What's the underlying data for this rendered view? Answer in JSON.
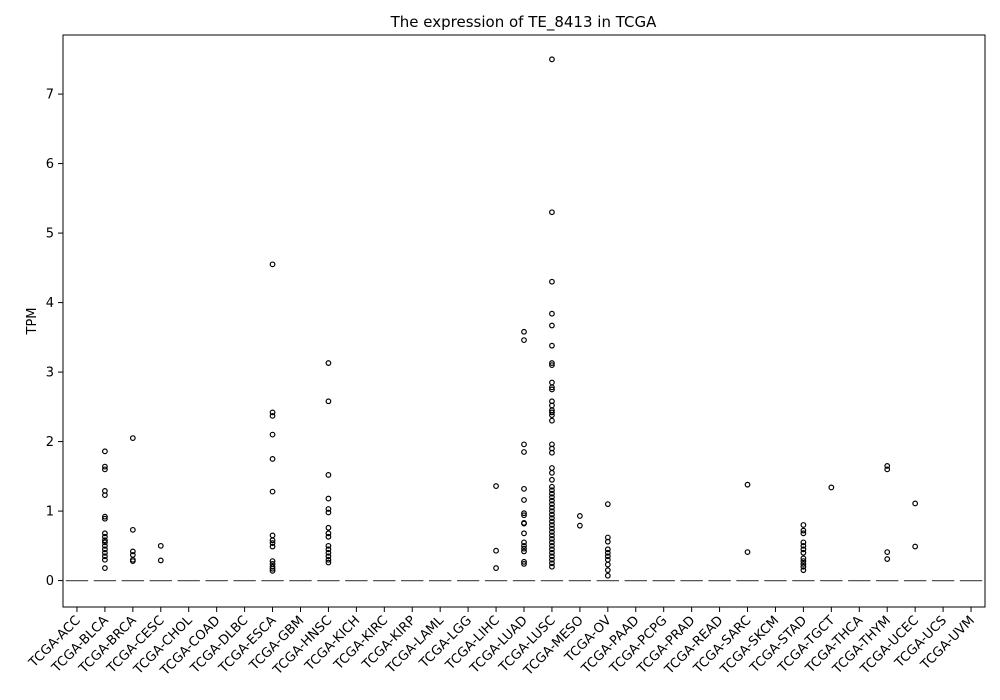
{
  "chart_data": {
    "type": "box",
    "title": "The expression of TE_8413 in TCGA",
    "xlabel": "",
    "ylabel": "TPM",
    "ylim": [
      -0.38,
      7.85
    ],
    "yticks": [
      0,
      1,
      2,
      3,
      4,
      5,
      6,
      7
    ],
    "grid": false,
    "categories": [
      "TCGA-ACC",
      "TCGA-BLCA",
      "TCGA-BRCA",
      "TCGA-CESC",
      "TCGA-CHOL",
      "TCGA-COAD",
      "TCGA-DLBC",
      "TCGA-ESCA",
      "TCGA-GBM",
      "TCGA-HNSC",
      "TCGA-KICH",
      "TCGA-KIRC",
      "TCGA-KIRP",
      "TCGA-LAML",
      "TCGA-LGG",
      "TCGA-LIHC",
      "TCGA-LUAD",
      "TCGA-LUSC",
      "TCGA-MESO",
      "TCGA-OV",
      "TCGA-PAAD",
      "TCGA-PCPG",
      "TCGA-PRAD",
      "TCGA-READ",
      "TCGA-SARC",
      "TCGA-SKCM",
      "TCGA-STAD",
      "TCGA-TGCT",
      "TCGA-THCA",
      "TCGA-THYM",
      "TCGA-UCEC",
      "TCGA-UCS",
      "TCGA-UVM"
    ],
    "median": [
      0,
      0,
      0,
      0,
      0,
      0,
      0,
      0,
      0,
      0,
      0,
      0,
      0,
      0,
      0,
      0,
      0,
      0,
      0,
      0,
      0,
      0,
      0,
      0,
      0,
      0,
      0,
      0,
      0,
      0,
      0,
      0,
      0
    ],
    "outliers": [
      [],
      [
        1.86,
        1.64,
        1.6,
        1.29,
        1.23,
        0.92,
        0.89,
        0.68,
        0.63,
        0.58,
        0.55,
        0.5,
        0.45,
        0.4,
        0.35,
        0.3,
        0.18
      ],
      [
        2.05,
        0.73,
        0.42,
        0.37,
        0.3,
        0.28
      ],
      [
        0.5,
        0.29
      ],
      [],
      [],
      [],
      [
        4.55,
        2.42,
        2.37,
        2.1,
        1.75,
        1.28,
        0.65,
        0.58,
        0.54,
        0.49,
        0.28,
        0.24,
        0.2,
        0.17,
        0.14
      ],
      [],
      [
        3.13,
        2.58,
        1.52,
        1.18,
        1.03,
        0.98,
        0.76,
        0.68,
        0.63,
        0.5,
        0.45,
        0.4,
        0.35,
        0.3,
        0.26
      ],
      [],
      [],
      [],
      [],
      [],
      [
        1.36,
        0.43,
        0.18
      ],
      [
        3.58,
        3.46,
        1.96,
        1.85,
        1.32,
        1.16,
        0.97,
        0.94,
        0.83,
        0.82,
        0.68,
        0.55,
        0.5,
        0.46,
        0.42,
        0.27,
        0.24
      ],
      [
        7.5,
        5.3,
        4.3,
        3.84,
        3.67,
        3.38,
        3.13,
        3.1,
        2.85,
        2.78,
        2.75,
        2.58,
        2.52,
        2.45,
        2.42,
        2.38,
        2.3,
        1.96,
        1.9,
        1.84,
        1.62,
        1.55,
        1.45,
        1.35,
        1.3,
        1.25,
        1.2,
        1.15,
        1.1,
        1.05,
        1.0,
        0.95,
        0.9,
        0.85,
        0.8,
        0.75,
        0.7,
        0.65,
        0.6,
        0.55,
        0.5,
        0.45,
        0.4,
        0.35,
        0.3,
        0.25,
        0.2
      ],
      [
        0.93,
        0.79
      ],
      [
        1.1,
        0.62,
        0.56,
        0.45,
        0.4,
        0.35,
        0.3,
        0.23,
        0.15,
        0.07
      ],
      [],
      [],
      [],
      [],
      [
        1.38,
        0.41
      ],
      [],
      [
        0.8,
        0.72,
        0.68,
        0.55,
        0.5,
        0.45,
        0.4,
        0.32,
        0.28,
        0.24,
        0.2,
        0.15
      ],
      [
        1.34
      ],
      [],
      [
        1.65,
        1.6,
        0.41,
        0.31
      ],
      [
        1.11,
        0.49
      ],
      [],
      []
    ],
    "colors": {
      "median": "#555555",
      "marker_edge": "#000000",
      "axis": "#000000"
    }
  }
}
